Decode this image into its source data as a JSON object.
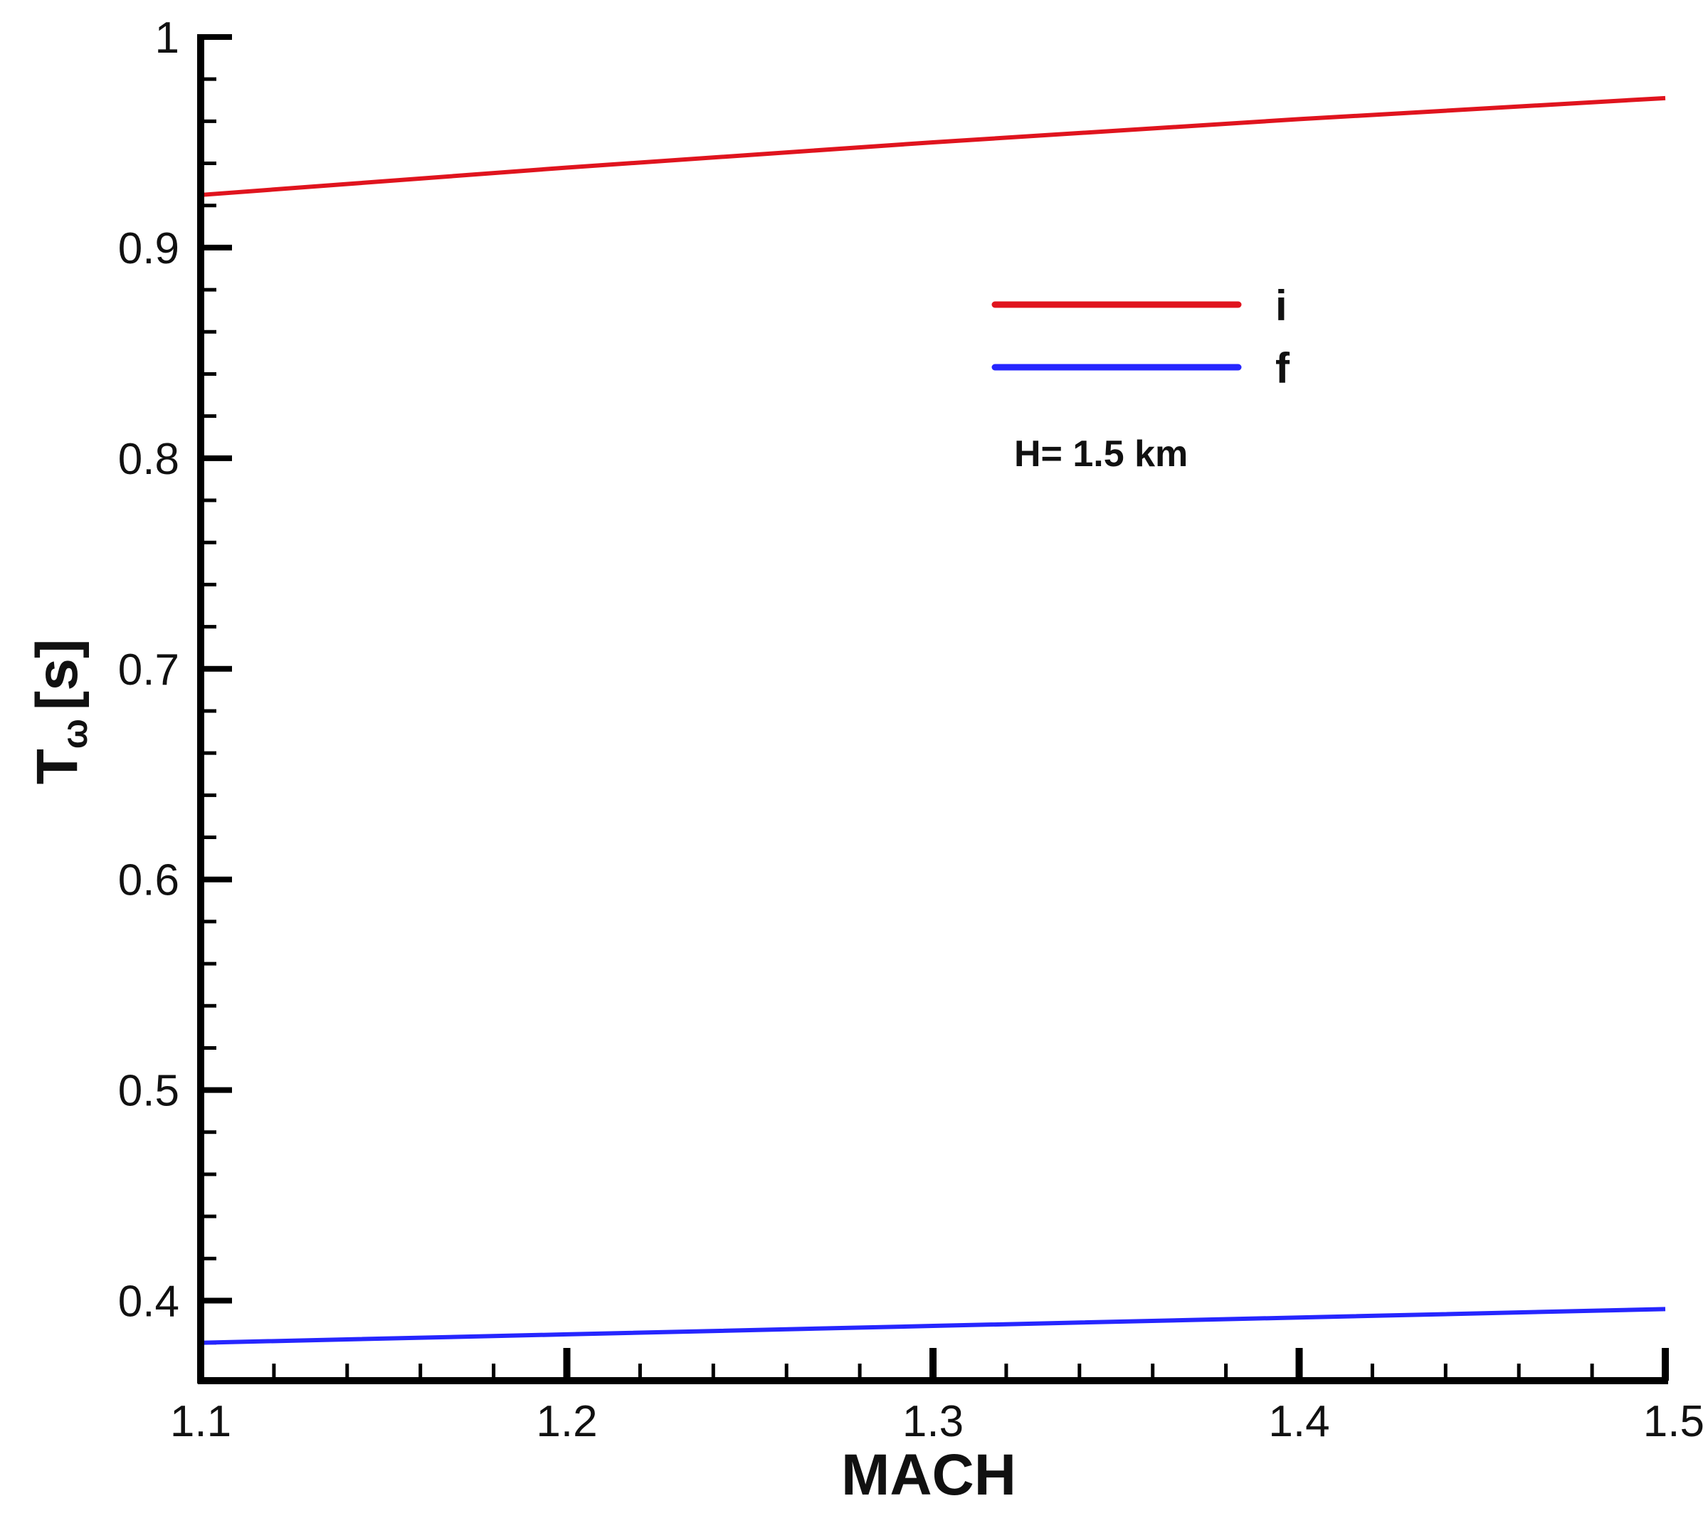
{
  "chart_data": {
    "type": "line",
    "title": "",
    "xlabel": "MACH",
    "ylabel": {
      "main": "T",
      "subscript": "ω",
      "unit": "[s]"
    },
    "xlim": [
      1.1,
      1.5
    ],
    "ylim": [
      0.362,
      1.0
    ],
    "x_ticks": [
      "1.1",
      "1.2",
      "1.3",
      "1.4",
      "1.5"
    ],
    "y_ticks": [
      "0.4",
      "0.5",
      "0.6",
      "0.7",
      "0.8",
      "0.9",
      "1"
    ],
    "grid": false,
    "legend_position": "upper-right-inside",
    "annotation": "H= 1.5 km",
    "series": [
      {
        "name": "i",
        "color": "#e0141e",
        "x": [
          1.1,
          1.2,
          1.3,
          1.4,
          1.5
        ],
        "y": [
          0.925,
          0.938,
          0.95,
          0.961,
          0.971
        ]
      },
      {
        "name": "f",
        "color": "#2626ff",
        "x": [
          1.1,
          1.2,
          1.3,
          1.4,
          1.5
        ],
        "y": [
          0.38,
          0.384,
          0.388,
          0.392,
          0.396
        ]
      }
    ]
  }
}
